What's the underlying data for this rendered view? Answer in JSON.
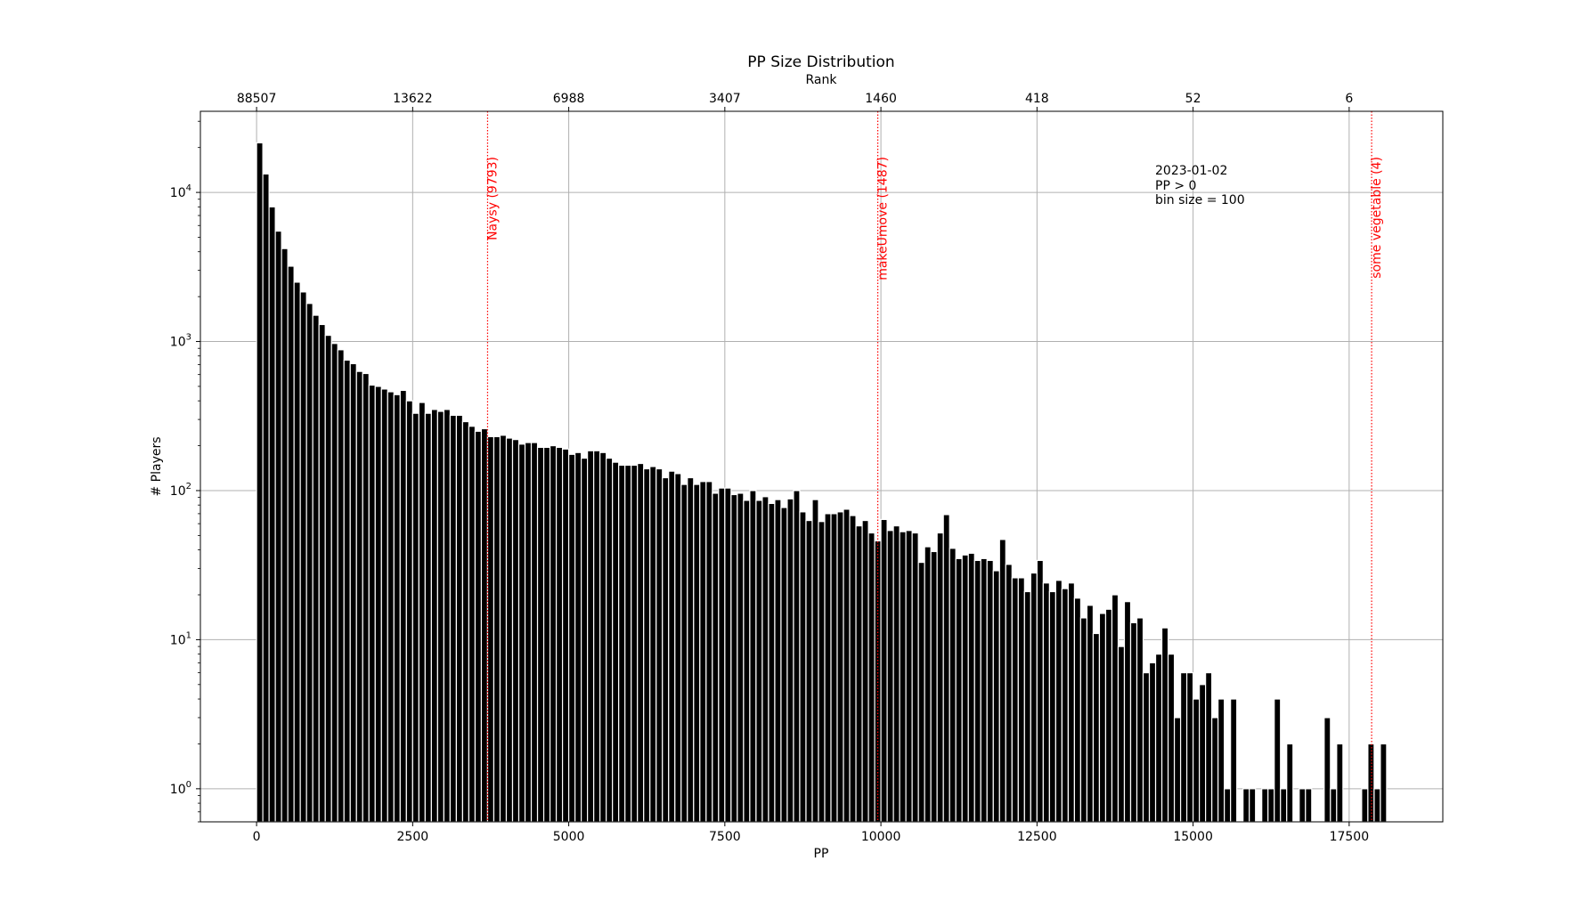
{
  "chart_data": {
    "type": "bar",
    "title": "PP Size Distribution",
    "xlabel": "PP",
    "ylabel": "# Players",
    "x2label": "Rank",
    "scale_y": "log",
    "xlim": [
      -900,
      19000
    ],
    "ylim": [
      0.6,
      35000
    ],
    "grid": true,
    "bin_size": 100,
    "bar_color": "#000000",
    "marker_color": "#ff0000",
    "x_ticks": [
      0,
      2500,
      5000,
      7500,
      10000,
      12500,
      15000,
      17500
    ],
    "x_tick_labels": [
      "0",
      "2500",
      "5000",
      "7500",
      "10000",
      "12500",
      "15000",
      "17500"
    ],
    "rank_tick_labels": [
      "88507",
      "13622",
      "6988",
      "3407",
      "1460",
      "418",
      "52",
      "6"
    ],
    "y_ticks": [
      1,
      10,
      100,
      1000,
      10000
    ],
    "y_tick_labels": [
      {
        "base": "10",
        "exp": "0"
      },
      {
        "base": "10",
        "exp": "1"
      },
      {
        "base": "10",
        "exp": "2"
      },
      {
        "base": "10",
        "exp": "3"
      },
      {
        "base": "10",
        "exp": "4"
      }
    ],
    "annotation_lines": [
      "2023-01-02",
      "PP > 0",
      "bin size = 100"
    ],
    "markers": [
      {
        "x": 3700,
        "label": "Naysy (9793)"
      },
      {
        "x": 9950,
        "label": "makeUmove (1487)"
      },
      {
        "x": 17860,
        "label": "some vegetable (4)"
      }
    ],
    "bins": [
      [
        50,
        21500
      ],
      [
        150,
        13300
      ],
      [
        250,
        8000
      ],
      [
        350,
        5500
      ],
      [
        450,
        4200
      ],
      [
        550,
        3200
      ],
      [
        650,
        2500
      ],
      [
        750,
        2150
      ],
      [
        850,
        1800
      ],
      [
        950,
        1500
      ],
      [
        1050,
        1300
      ],
      [
        1150,
        1100
      ],
      [
        1250,
        970
      ],
      [
        1350,
        880
      ],
      [
        1450,
        750
      ],
      [
        1550,
        710
      ],
      [
        1650,
        630
      ],
      [
        1750,
        610
      ],
      [
        1850,
        510
      ],
      [
        1950,
        500
      ],
      [
        2050,
        480
      ],
      [
        2150,
        460
      ],
      [
        2250,
        440
      ],
      [
        2350,
        470
      ],
      [
        2450,
        400
      ],
      [
        2550,
        330
      ],
      [
        2650,
        390
      ],
      [
        2750,
        330
      ],
      [
        2850,
        350
      ],
      [
        2950,
        340
      ],
      [
        3050,
        350
      ],
      [
        3150,
        320
      ],
      [
        3250,
        320
      ],
      [
        3350,
        290
      ],
      [
        3450,
        270
      ],
      [
        3550,
        250
      ],
      [
        3650,
        260
      ],
      [
        3750,
        230
      ],
      [
        3850,
        230
      ],
      [
        3950,
        235
      ],
      [
        4050,
        225
      ],
      [
        4150,
        220
      ],
      [
        4250,
        205
      ],
      [
        4350,
        210
      ],
      [
        4450,
        210
      ],
      [
        4550,
        195
      ],
      [
        4650,
        195
      ],
      [
        4750,
        200
      ],
      [
        4850,
        195
      ],
      [
        4950,
        190
      ],
      [
        5050,
        175
      ],
      [
        5150,
        180
      ],
      [
        5250,
        165
      ],
      [
        5350,
        185
      ],
      [
        5450,
        185
      ],
      [
        5550,
        180
      ],
      [
        5650,
        165
      ],
      [
        5750,
        155
      ],
      [
        5850,
        148
      ],
      [
        5950,
        148
      ],
      [
        6050,
        148
      ],
      [
        6150,
        152
      ],
      [
        6250,
        140
      ],
      [
        6350,
        145
      ],
      [
        6450,
        140
      ],
      [
        6550,
        122
      ],
      [
        6650,
        135
      ],
      [
        6750,
        130
      ],
      [
        6850,
        110
      ],
      [
        6950,
        122
      ],
      [
        7050,
        110
      ],
      [
        7150,
        115
      ],
      [
        7250,
        115
      ],
      [
        7350,
        96
      ],
      [
        7450,
        104
      ],
      [
        7550,
        104
      ],
      [
        7650,
        94
      ],
      [
        7750,
        96
      ],
      [
        7850,
        86
      ],
      [
        7950,
        100
      ],
      [
        8050,
        86
      ],
      [
        8150,
        91
      ],
      [
        8250,
        82
      ],
      [
        8350,
        87
      ],
      [
        8450,
        77
      ],
      [
        8550,
        88
      ],
      [
        8650,
        100
      ],
      [
        8750,
        72
      ],
      [
        8850,
        63
      ],
      [
        8950,
        87
      ],
      [
        9050,
        62
      ],
      [
        9150,
        70
      ],
      [
        9250,
        70
      ],
      [
        9350,
        72
      ],
      [
        9450,
        75
      ],
      [
        9550,
        68
      ],
      [
        9650,
        58
      ],
      [
        9750,
        63
      ],
      [
        9850,
        52
      ],
      [
        9950,
        46
      ],
      [
        10050,
        64
      ],
      [
        10150,
        54
      ],
      [
        10250,
        58
      ],
      [
        10350,
        53
      ],
      [
        10450,
        54
      ],
      [
        10550,
        52
      ],
      [
        10650,
        33
      ],
      [
        10750,
        42
      ],
      [
        10850,
        39
      ],
      [
        10950,
        52
      ],
      [
        11050,
        69
      ],
      [
        11150,
        41
      ],
      [
        11250,
        35
      ],
      [
        11350,
        37
      ],
      [
        11450,
        38
      ],
      [
        11550,
        34
      ],
      [
        11650,
        35
      ],
      [
        11750,
        34
      ],
      [
        11850,
        29
      ],
      [
        11950,
        47
      ],
      [
        12050,
        32
      ],
      [
        12150,
        26
      ],
      [
        12250,
        26
      ],
      [
        12350,
        21
      ],
      [
        12450,
        28
      ],
      [
        12550,
        34
      ],
      [
        12650,
        24
      ],
      [
        12750,
        21
      ],
      [
        12850,
        25
      ],
      [
        12950,
        22
      ],
      [
        13050,
        24
      ],
      [
        13150,
        19
      ],
      [
        13250,
        14
      ],
      [
        13350,
        17
      ],
      [
        13450,
        11
      ],
      [
        13550,
        15
      ],
      [
        13650,
        16
      ],
      [
        13750,
        20
      ],
      [
        13850,
        9
      ],
      [
        13950,
        18
      ],
      [
        14050,
        13
      ],
      [
        14150,
        14
      ],
      [
        14250,
        6
      ],
      [
        14350,
        7
      ],
      [
        14450,
        8
      ],
      [
        14550,
        12
      ],
      [
        14650,
        8
      ],
      [
        14750,
        3
      ],
      [
        14850,
        6
      ],
      [
        14950,
        6
      ],
      [
        15050,
        4
      ],
      [
        15150,
        5
      ],
      [
        15250,
        6
      ],
      [
        15350,
        3
      ],
      [
        15450,
        4
      ],
      [
        15550,
        1
      ],
      [
        15650,
        4
      ],
      [
        15850,
        1
      ],
      [
        15950,
        1
      ],
      [
        16150,
        1
      ],
      [
        16250,
        1
      ],
      [
        16350,
        4
      ],
      [
        16450,
        1
      ],
      [
        16550,
        2
      ],
      [
        16750,
        1
      ],
      [
        16850,
        1
      ],
      [
        17150,
        3
      ],
      [
        17250,
        1
      ],
      [
        17350,
        2
      ],
      [
        17750,
        1
      ],
      [
        17850,
        2
      ],
      [
        17950,
        1
      ],
      [
        18050,
        2
      ]
    ]
  }
}
